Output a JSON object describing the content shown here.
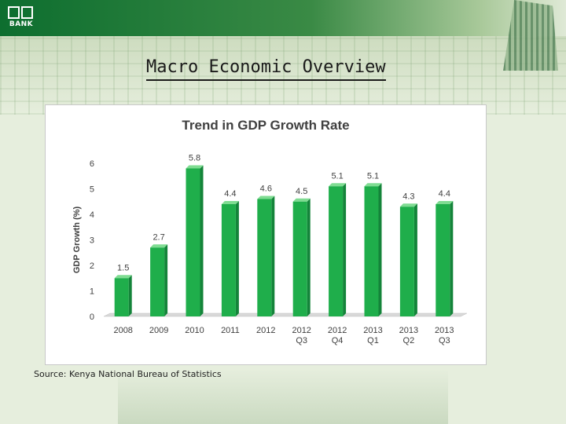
{
  "slide": {
    "logo_text": "BANK",
    "title": "Macro Economic Overview",
    "source": "Source: Kenya National Bureau of Statistics"
  },
  "colors": {
    "bar": "#1fae4b",
    "bar_dark": "#14843a",
    "bar_top": "#7fdc92",
    "banner": "#0d6e2f"
  },
  "chart_data": {
    "type": "bar",
    "title": "Trend in GDP Growth Rate",
    "xlabel": "",
    "ylabel": "GDP Growth (%)",
    "ylim": [
      0,
      6
    ],
    "yticks": [
      0,
      1,
      2,
      3,
      4,
      5,
      6
    ],
    "grid": false,
    "categories": [
      [
        "2008"
      ],
      [
        "2009"
      ],
      [
        "2010"
      ],
      [
        "2011"
      ],
      [
        "2012"
      ],
      [
        "2012",
        "Q3"
      ],
      [
        "2012",
        "Q4"
      ],
      [
        "2013",
        "Q1"
      ],
      [
        "2013",
        "Q2"
      ],
      [
        "2013",
        "Q3"
      ]
    ],
    "values": [
      1.5,
      2.7,
      5.8,
      4.4,
      4.6,
      4.5,
      5.1,
      5.1,
      4.3,
      4.4
    ]
  }
}
